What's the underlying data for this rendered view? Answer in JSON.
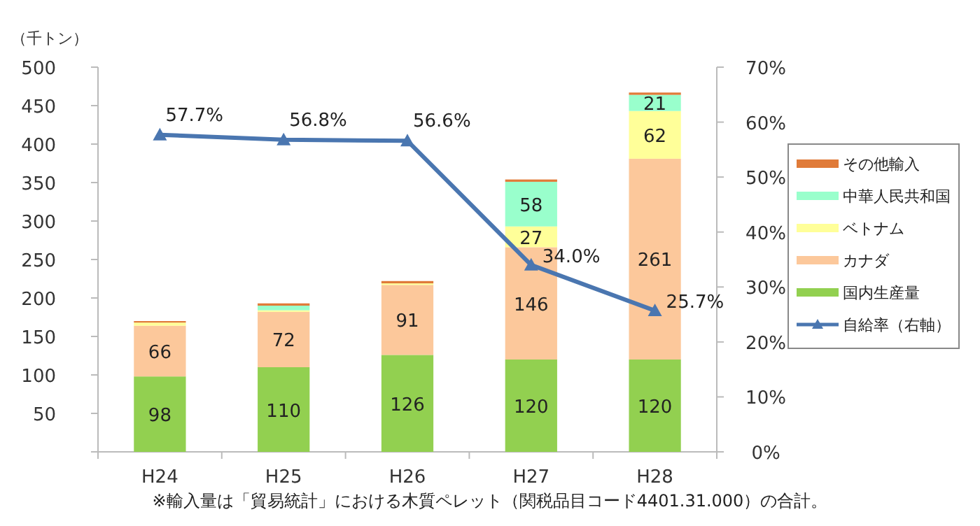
{
  "chart_data": {
    "type": "bar",
    "stacked": true,
    "ylabel": "（千トン）",
    "categories": [
      "H24",
      "H25",
      "H26",
      "H27",
      "H28"
    ],
    "series": [
      {
        "name": "国内生産量",
        "color": "#92d050",
        "values": [
          98,
          110,
          126,
          120,
          120
        ],
        "value_labels": [
          "98",
          "110",
          "126",
          "120",
          "120"
        ]
      },
      {
        "name": "カナダ",
        "color": "#fcc89b",
        "values": [
          66,
          72,
          91,
          146,
          261
        ],
        "value_labels": [
          "66",
          "72",
          "91",
          "146",
          "261"
        ]
      },
      {
        "name": "ベトナム",
        "color": "#ffff99",
        "values": [
          4,
          2,
          2,
          27,
          62
        ],
        "value_labels": [
          null,
          null,
          null,
          "27",
          "62"
        ]
      },
      {
        "name": "中華人民共和国",
        "color": "#99ffcc",
        "values": [
          0,
          6,
          0,
          58,
          21
        ],
        "value_labels": [
          null,
          null,
          null,
          "58",
          "21"
        ]
      },
      {
        "name": "その他輸入",
        "color": "#e07b39",
        "values": [
          2,
          3,
          3,
          3,
          3
        ],
        "value_labels": [
          null,
          null,
          null,
          null,
          null
        ]
      },
      {
        "name": "自給率（右軸）",
        "type": "line",
        "axis": "y2",
        "color": "#4a76b0",
        "marker": "triangle",
        "values": [
          57.7,
          56.8,
          56.6,
          34.0,
          25.7
        ],
        "value_labels": [
          "57.7%",
          "56.8%",
          "56.6%",
          "34.0%",
          "25.7%"
        ]
      }
    ],
    "ylim": [
      0,
      500
    ],
    "yticks": [
      {
        "value": 0,
        "label": null
      },
      50,
      100,
      150,
      200,
      250,
      300,
      350,
      400,
      450,
      500
    ],
    "y2lim": [
      0,
      70
    ],
    "y2ticks": [
      {
        "value": 0,
        "label": "0%"
      },
      {
        "value": 10,
        "label": "10%"
      },
      {
        "value": 20,
        "label": "20%"
      },
      {
        "value": 30,
        "label": "30%"
      },
      {
        "value": 40,
        "label": "40%"
      },
      {
        "value": 50,
        "label": "50%"
      },
      {
        "value": 60,
        "label": "60%"
      },
      {
        "value": 70,
        "label": "70%"
      }
    ],
    "legend": "right",
    "grid": false,
    "annotations": [
      "※輸入量は「貿易統計」における木質ペレット（関税品目コード4401.31.000）の合計。"
    ]
  }
}
